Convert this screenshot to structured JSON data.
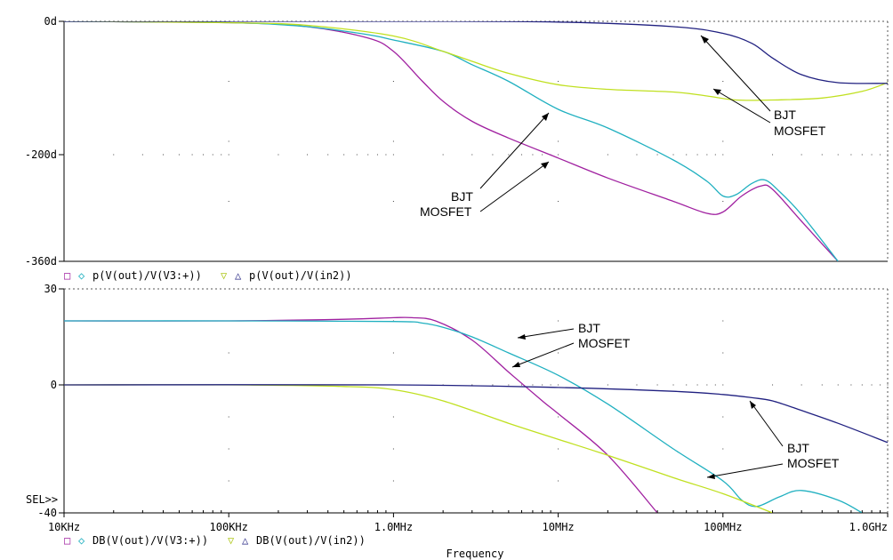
{
  "chart_data": [
    {
      "type": "line",
      "panel": "phase",
      "xscale": "log",
      "xlim": [
        10000,
        1000000000
      ],
      "ylim": [
        -360,
        0
      ],
      "yticks": [
        {
          "v": 0,
          "label": "0d"
        },
        {
          "v": -200,
          "label": "-200d"
        },
        {
          "v": -360,
          "label": "-360d"
        }
      ],
      "legend": {
        "markers": [
          "□",
          "◇",
          "▽",
          "△"
        ],
        "text1": "p(V(out)/V(V3:+))",
        "text2": "p(V(out)/V(in2))"
      },
      "series": [
        {
          "color": "#a020a0",
          "points": [
            [
              10000,
              0
            ],
            [
              100000,
              -2
            ],
            [
              300000,
              -8
            ],
            [
              700000,
              -25
            ],
            [
              1000000,
              -45
            ],
            [
              1500000,
              -90
            ],
            [
              2000000,
              -120
            ],
            [
              3000000,
              -150
            ],
            [
              5000000,
              -175
            ],
            [
              10000000,
              -205
            ],
            [
              20000000,
              -235
            ],
            [
              50000000,
              -270
            ],
            [
              80000000,
              -288
            ],
            [
              100000000,
              -286
            ],
            [
              130000000,
              -262
            ],
            [
              170000000,
              -247
            ],
            [
              200000000,
              -252
            ],
            [
              300000000,
              -300
            ],
            [
              500000000,
              -360
            ]
          ]
        },
        {
          "color": "#20b0c0",
          "points": [
            [
              10000,
              0
            ],
            [
              100000,
              -2
            ],
            [
              300000,
              -8
            ],
            [
              700000,
              -20
            ],
            [
              1000000,
              -28
            ],
            [
              2000000,
              -45
            ],
            [
              3000000,
              -65
            ],
            [
              5000000,
              -90
            ],
            [
              10000000,
              -132
            ],
            [
              20000000,
              -160
            ],
            [
              50000000,
              -208
            ],
            [
              80000000,
              -240
            ],
            [
              100000000,
              -262
            ],
            [
              120000000,
              -260
            ],
            [
              150000000,
              -243
            ],
            [
              180000000,
              -238
            ],
            [
              220000000,
              -255
            ],
            [
              300000000,
              -290
            ],
            [
              500000000,
              -360
            ]
          ]
        },
        {
          "color": "#c0e020",
          "points": [
            [
              10000,
              0
            ],
            [
              100000,
              -2
            ],
            [
              300000,
              -6
            ],
            [
              1000000,
              -22
            ],
            [
              2000000,
              -45
            ],
            [
              3000000,
              -60
            ],
            [
              5000000,
              -78
            ],
            [
              10000000,
              -95
            ],
            [
              20000000,
              -102
            ],
            [
              50000000,
              -106
            ],
            [
              80000000,
              -112
            ],
            [
              120000000,
              -118
            ],
            [
              200000000,
              -118
            ],
            [
              400000000,
              -115
            ],
            [
              700000000,
              -105
            ],
            [
              1000000000,
              -92
            ]
          ]
        },
        {
          "color": "#202080",
          "points": [
            [
              10000,
              0
            ],
            [
              1000000,
              0
            ],
            [
              10000000,
              -1
            ],
            [
              50000000,
              -8
            ],
            [
              100000000,
              -18
            ],
            [
              150000000,
              -33
            ],
            [
              200000000,
              -55
            ],
            [
              300000000,
              -80
            ],
            [
              500000000,
              -92
            ],
            [
              1000000000,
              -93
            ]
          ]
        }
      ],
      "annotations": [
        {
          "label1": "BJT",
          "label2": "MOSFET"
        },
        {
          "label1": "BJT",
          "label2": "MOSFET"
        }
      ]
    },
    {
      "type": "line",
      "panel": "magnitude",
      "xscale": "log",
      "xlim": [
        10000,
        1000000000
      ],
      "ylim": [
        -40,
        30
      ],
      "yticks": [
        {
          "v": 30,
          "label": "30"
        },
        {
          "v": 0,
          "label": "0"
        },
        {
          "v": -40,
          "label": "-40"
        }
      ],
      "sel_label": "SEL>>",
      "xticks": [
        {
          "v": 10000,
          "label": "10KHz"
        },
        {
          "v": 100000,
          "label": "100KHz"
        },
        {
          "v": 1000000,
          "label": "1.0MHz"
        },
        {
          "v": 10000000,
          "label": "10MHz"
        },
        {
          "v": 100000000,
          "label": "100MHz"
        },
        {
          "v": 1000000000,
          "label": "1.0GHz"
        }
      ],
      "xlabel": "Frequency",
      "legend": {
        "markers": [
          "□",
          "◇",
          "▽",
          "△"
        ],
        "text1": "DB(V(out)/V(V3:+))",
        "text2": "DB(V(out)/V(in2))"
      },
      "series": [
        {
          "color": "#a020a0",
          "points": [
            [
              10000,
              20
            ],
            [
              100000,
              20
            ],
            [
              500000,
              20.5
            ],
            [
              1000000,
              21
            ],
            [
              1300000,
              21
            ],
            [
              1800000,
              20
            ],
            [
              3000000,
              14
            ],
            [
              5000000,
              4
            ],
            [
              8000000,
              -5
            ],
            [
              10000000,
              -9
            ],
            [
              20000000,
              -22
            ],
            [
              40000000,
              -40
            ]
          ]
        },
        {
          "color": "#20b0c0",
          "points": [
            [
              10000,
              20
            ],
            [
              100000,
              20
            ],
            [
              1000000,
              19.8
            ],
            [
              1500000,
              19.3
            ],
            [
              2000000,
              18
            ],
            [
              3000000,
              15
            ],
            [
              5000000,
              10
            ],
            [
              10000000,
              3
            ],
            [
              20000000,
              -6
            ],
            [
              50000000,
              -20
            ],
            [
              100000000,
              -30
            ],
            [
              130000000,
              -36
            ],
            [
              160000000,
              -38
            ],
            [
              220000000,
              -35
            ],
            [
              300000000,
              -33
            ],
            [
              500000000,
              -36
            ],
            [
              700000000,
              -40
            ]
          ]
        },
        {
          "color": "#c0e020",
          "points": [
            [
              10000,
              0
            ],
            [
              100000,
              0
            ],
            [
              500000,
              -0.5
            ],
            [
              1000000,
              -1.5
            ],
            [
              2000000,
              -5
            ],
            [
              5000000,
              -12
            ],
            [
              10000000,
              -17
            ],
            [
              20000000,
              -22
            ],
            [
              50000000,
              -29
            ],
            [
              100000000,
              -34
            ],
            [
              200000000,
              -40
            ]
          ]
        },
        {
          "color": "#202080",
          "points": [
            [
              10000,
              0
            ],
            [
              1000000,
              0
            ],
            [
              10000000,
              -0.8
            ],
            [
              50000000,
              -2
            ],
            [
              100000000,
              -3
            ],
            [
              150000000,
              -4
            ],
            [
              200000000,
              -5
            ],
            [
              300000000,
              -8
            ],
            [
              500000000,
              -12
            ],
            [
              1000000000,
              -18
            ]
          ]
        }
      ],
      "annotations": [
        {
          "label1": "BJT",
          "label2": "MOSFET"
        },
        {
          "label1": "BJT",
          "label2": "MOSFET"
        }
      ]
    }
  ]
}
